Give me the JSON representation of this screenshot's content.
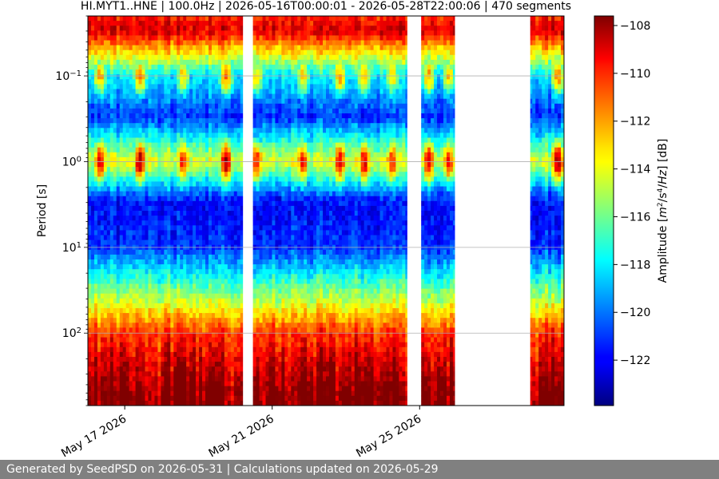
{
  "chart_data": {
    "type": "heatmap",
    "title": "HI.MYT1..HNE | 100.0Hz | 2026-05-16T00:00:01 - 2026-05-28T22:00:06 | 470 segments",
    "xlabel": "",
    "ylabel": "Period [s]",
    "x_range": [
      "2026-05-16T00:00:01",
      "2026-05-28T22:00:06"
    ],
    "x_ticks": [
      "May 17 2026",
      "May 21 2026",
      "May 25 2026"
    ],
    "x_tick_dates": [
      "2026-05-17",
      "2026-05-21",
      "2026-05-25"
    ],
    "y_scale": "log",
    "y_inverted": true,
    "y_range": [
      0.02,
      700
    ],
    "y_ticks": [
      {
        "base": "10",
        "exp": "−1",
        "value": 0.1
      },
      {
        "base": "10",
        "exp": "0",
        "value": 1
      },
      {
        "base": "10",
        "exp": "1",
        "value": 10
      },
      {
        "base": "10",
        "exp": "2",
        "value": 100
      }
    ],
    "grid": "horizontal",
    "colormap": "jet",
    "colorbar": {
      "label_prefix": "Amplitude [",
      "label_unit_m": "m",
      "label_exp2": "2",
      "label_mid": "/s",
      "label_exp4": "4",
      "label_tail": "/",
      "label_hz": "Hz",
      "label_suffix": "] [dB]",
      "range": [
        -123.9,
        -107.6
      ],
      "ticks": [
        "−108",
        "−110",
        "−112",
        "−114",
        "−116",
        "−118",
        "−120",
        "−122"
      ],
      "tick_values": [
        -108,
        -110,
        -112,
        -114,
        -116,
        -118,
        -120,
        -122
      ]
    },
    "data_gaps": [
      [
        "2026-05-20T05:00:00",
        "2026-05-20T11:00:00"
      ],
      [
        "2026-05-24T16:00:00",
        "2026-05-25T00:00:00"
      ],
      [
        "2026-05-25T23:00:00",
        "2026-05-28T00:00:00"
      ]
    ],
    "period_band_levels_db": [
      {
        "period": 0.02,
        "db": -110
      },
      {
        "period": 0.03,
        "db": -109
      },
      {
        "period": 0.1,
        "db": -118
      },
      {
        "period": 0.3,
        "db": -121
      },
      {
        "period": 1.0,
        "db": -114
      },
      {
        "period": 3.0,
        "db": -122
      },
      {
        "period": 10,
        "db": -121
      },
      {
        "period": 30,
        "db": -116
      },
      {
        "period": 100,
        "db": -111
      },
      {
        "period": 500,
        "db": -109
      }
    ],
    "microseism_peaks": [
      {
        "date": "2026-05-16T08:00:00",
        "db": -109
      },
      {
        "date": "2026-05-17T10:00:00",
        "db": -108
      },
      {
        "date": "2026-05-18T14:00:00",
        "db": -110
      },
      {
        "date": "2026-05-19T18:00:00",
        "db": -108
      },
      {
        "date": "2026-05-20T14:00:00",
        "db": -110
      },
      {
        "date": "2026-05-21T20:00:00",
        "db": -110
      },
      {
        "date": "2026-05-22T20:00:00",
        "db": -109
      },
      {
        "date": "2026-05-23T12:00:00",
        "db": -109
      },
      {
        "date": "2026-05-24T06:00:00",
        "db": -110
      },
      {
        "date": "2026-05-25T06:00:00",
        "db": -109
      },
      {
        "date": "2026-05-25T19:00:00",
        "db": -110
      },
      {
        "date": "2026-05-28T18:00:00",
        "db": -108
      }
    ]
  },
  "footer": {
    "text": "Generated by SeedPSD on 2026-05-31 | Calculations updated on 2026-05-29"
  }
}
